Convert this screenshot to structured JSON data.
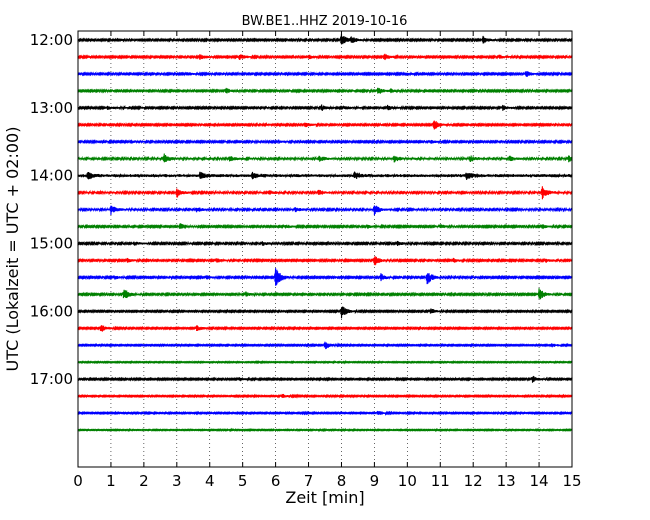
{
  "chart_data": {
    "type": "line",
    "title": "BW.BE1..HHZ 2019-10-16",
    "xlabel": "Zeit  [min]",
    "ylabel": "UTC (Lokalzeit = UTC + 02:00)",
    "xlim": [
      0,
      15
    ],
    "x_ticks": [
      "0",
      "1",
      "2",
      "3",
      "4",
      "5",
      "6",
      "7",
      "8",
      "9",
      "10",
      "11",
      "12",
      "13",
      "14",
      "15"
    ],
    "y_tick_labels": [
      "12:00",
      "13:00",
      "14:00",
      "15:00",
      "16:00",
      "17:00"
    ],
    "grid": "vertical dotted",
    "colors": [
      "#000000",
      "#ff0000",
      "#0000ff",
      "#008000"
    ],
    "traces": [
      {
        "start": "12:00",
        "noise": 0.8,
        "events": [
          [
            1.2,
            1.5
          ],
          [
            8.0,
            6
          ],
          [
            8.3,
            3
          ],
          [
            12.3,
            4
          ]
        ]
      },
      {
        "start": "12:15",
        "noise": 0.8,
        "events": [
          [
            3.7,
            2.5
          ],
          [
            4.9,
            3
          ],
          [
            7.0,
            2
          ],
          [
            9.3,
            3
          ],
          [
            12.8,
            2
          ]
        ]
      },
      {
        "start": "12:30",
        "noise": 0.8,
        "events": [
          [
            3.3,
            2
          ],
          [
            9.9,
            2
          ],
          [
            13.6,
            3
          ]
        ]
      },
      {
        "start": "12:45",
        "noise": 0.8,
        "events": [
          [
            4.5,
            2.5
          ],
          [
            9.1,
            3.5
          ],
          [
            9.5,
            2
          ]
        ]
      },
      {
        "start": "13:00",
        "noise": 0.8,
        "events": [
          [
            0.9,
            2
          ],
          [
            7.4,
            3
          ],
          [
            8.1,
            2
          ],
          [
            9.4,
            3
          ],
          [
            12.9,
            2.5
          ]
        ]
      },
      {
        "start": "13:15",
        "noise": 0.8,
        "events": [
          [
            6.9,
            2.5
          ],
          [
            10.8,
            5.5
          ]
        ]
      },
      {
        "start": "13:30",
        "noise": 0.8,
        "events": [
          [
            1.6,
            2
          ],
          [
            6.1,
            1.5
          ],
          [
            10.7,
            2
          ]
        ]
      },
      {
        "start": "13:45",
        "noise": 1.1,
        "events": [
          [
            2.6,
            5
          ],
          [
            4.6,
            2.5
          ],
          [
            7.3,
            3
          ],
          [
            9.6,
            3
          ],
          [
            11.9,
            3
          ],
          [
            13.1,
            2.5
          ],
          [
            14.9,
            3
          ]
        ]
      },
      {
        "start": "14:00",
        "noise": 1.7,
        "events": [
          [
            0.3,
            3
          ],
          [
            3.7,
            3
          ],
          [
            5.3,
            2.5
          ],
          [
            8.4,
            3
          ],
          [
            11.8,
            4
          ]
        ]
      },
      {
        "start": "14:15",
        "noise": 1.0,
        "events": [
          [
            3.0,
            4.5
          ],
          [
            5.8,
            2
          ],
          [
            7.3,
            2.5
          ],
          [
            14.1,
            6
          ]
        ]
      },
      {
        "start": "14:30",
        "noise": 1.0,
        "events": [
          [
            1.0,
            4.5
          ],
          [
            3.6,
            2.5
          ],
          [
            6.6,
            2
          ],
          [
            9.0,
            5
          ]
        ]
      },
      {
        "start": "14:45",
        "noise": 0.8,
        "events": [
          [
            3.1,
            3
          ],
          [
            6.3,
            2
          ],
          [
            8.8,
            2
          ],
          [
            11.0,
            2
          ],
          [
            14.1,
            2
          ]
        ]
      },
      {
        "start": "15:00",
        "noise": 0.9,
        "events": [
          [
            1.7,
            2
          ],
          [
            5.6,
            2
          ],
          [
            9.7,
            2
          ]
        ]
      },
      {
        "start": "15:15",
        "noise": 0.8,
        "events": [
          [
            1.5,
            2
          ],
          [
            4.2,
            2
          ],
          [
            9.0,
            5
          ],
          [
            11.4,
            2
          ],
          [
            14.2,
            2
          ]
        ]
      },
      {
        "start": "15:30",
        "noise": 0.8,
        "events": [
          [
            1.1,
            2
          ],
          [
            3.9,
            2
          ],
          [
            6.0,
            9.5
          ],
          [
            9.2,
            3.5
          ],
          [
            10.6,
            7
          ]
        ]
      },
      {
        "start": "15:45",
        "noise": 0.8,
        "events": [
          [
            1.4,
            6
          ],
          [
            5.1,
            2.5
          ],
          [
            14.0,
            5.5
          ]
        ]
      },
      {
        "start": "16:00",
        "noise": 0.7,
        "events": [
          [
            8.0,
            7
          ],
          [
            10.7,
            3
          ]
        ]
      },
      {
        "start": "16:15",
        "noise": 0.7,
        "events": [
          [
            0.7,
            4
          ],
          [
            3.6,
            3
          ]
        ]
      },
      {
        "start": "16:30",
        "noise": 0.6,
        "events": [
          [
            7.5,
            4
          ],
          [
            14.4,
            2
          ]
        ]
      },
      {
        "start": "16:45",
        "noise": 0.5,
        "events": []
      },
      {
        "start": "17:00",
        "noise": 0.7,
        "events": [
          [
            4.9,
            1.5
          ],
          [
            13.8,
            3.5
          ]
        ]
      },
      {
        "start": "17:15",
        "noise": 0.6,
        "events": [
          [
            6.2,
            2
          ]
        ]
      },
      {
        "start": "17:30",
        "noise": 0.6,
        "events": [
          [
            9.1,
            2.5
          ]
        ]
      },
      {
        "start": "17:45",
        "noise": 0.5,
        "events": []
      }
    ]
  }
}
